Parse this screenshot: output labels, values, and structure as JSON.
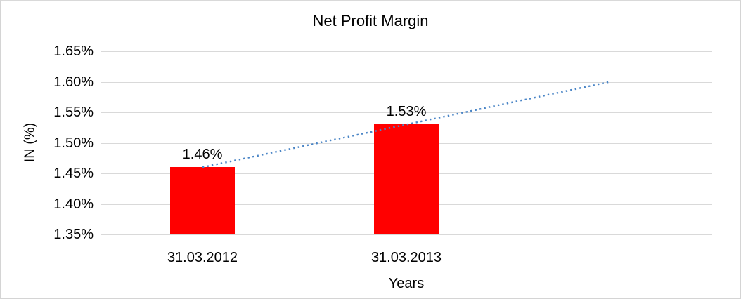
{
  "chart_data": {
    "type": "bar",
    "title": "Net Profit Margin",
    "categories": [
      "31.03.2012",
      "31.03.2013"
    ],
    "values": [
      1.46,
      1.53
    ],
    "value_labels": [
      "1.46%",
      "1.53%"
    ],
    "xlabel": "Years",
    "ylabel": "IN (%)",
    "ylim": [
      1.35,
      1.65
    ],
    "ytick_step": 0.05,
    "yticks": [
      "1.65%",
      "1.60%",
      "1.55%",
      "1.50%",
      "1.45%",
      "1.40%",
      "1.35%"
    ],
    "grid": true,
    "legend": "none",
    "bar_color": "#ff0000",
    "gridline_color": "#d9d9d9",
    "trendline": {
      "style": "dotted",
      "color": "#4a85c6",
      "start_value": 1.46,
      "end_value": 1.6,
      "forecast_periods": 1
    }
  }
}
